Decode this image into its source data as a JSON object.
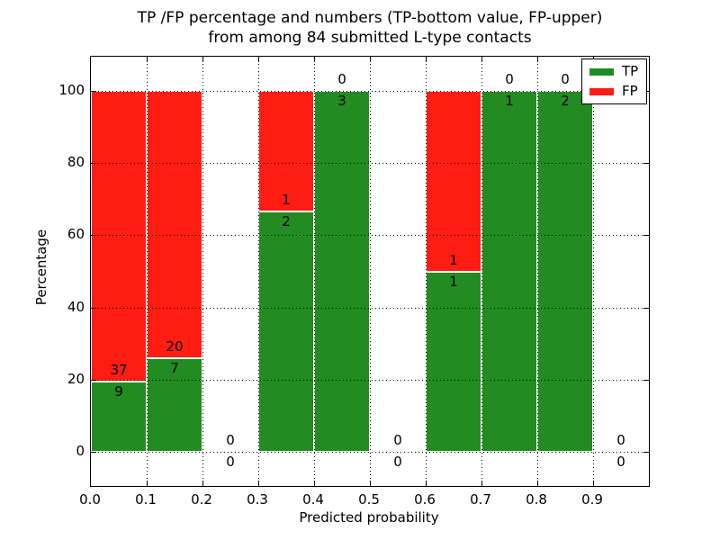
{
  "title": {
    "line1": "TP /FP percentage and numbers (TP-bottom value, FP-upper)",
    "line2": "from among 84 submitted L-type contacts"
  },
  "axes": {
    "xlabel": "Predicted probability",
    "ylabel": "Percentage",
    "xtick_labels": [
      "0.0",
      "0.1",
      "0.2",
      "0.3",
      "0.4",
      "0.5",
      "0.6",
      "0.7",
      "0.8",
      "0.9"
    ],
    "ytick_labels": [
      "0",
      "20",
      "40",
      "60",
      "80",
      "100"
    ]
  },
  "legend": {
    "items": [
      {
        "label": "TP",
        "color": "#228b22"
      },
      {
        "label": "FP",
        "color": "#fd1d13"
      }
    ]
  },
  "colors": {
    "tp_green": "#228b22",
    "fp_red": "#fd1d13",
    "grid": "#000000",
    "background": "#ffffff"
  },
  "chart_data": {
    "type": "bar",
    "stacked": true,
    "normalization": "each bin scaled to 100% (counts annotated: TP below boundary, FP above)",
    "title": "TP /FP percentage and numbers (TP-bottom value, FP-upper) from among 84 submitted L-type contacts",
    "xlabel": "Predicted probability",
    "ylabel": "Percentage",
    "bins": [
      [
        0.0,
        0.1
      ],
      [
        0.1,
        0.2
      ],
      [
        0.2,
        0.3
      ],
      [
        0.3,
        0.4
      ],
      [
        0.4,
        0.5
      ],
      [
        0.5,
        0.6
      ],
      [
        0.6,
        0.7
      ],
      [
        0.7,
        0.8
      ],
      [
        0.8,
        0.9
      ],
      [
        0.9,
        1.0
      ]
    ],
    "series": [
      {
        "name": "TP",
        "color": "#228b22",
        "values": [
          9,
          7,
          0,
          2,
          3,
          0,
          1,
          1,
          2,
          0
        ]
      },
      {
        "name": "FP",
        "color": "#fd1d13",
        "values": [
          37,
          20,
          0,
          1,
          0,
          0,
          1,
          0,
          0,
          0
        ]
      }
    ],
    "tp_percent_per_bin": [
      19.57,
      25.93,
      0,
      66.67,
      100,
      0,
      50,
      100,
      100,
      0
    ],
    "total_contacts": 84,
    "xlim": [
      0.0,
      1.0
    ],
    "ylim": [
      -10,
      110
    ],
    "grid": "dotted",
    "legend_position": "upper right"
  }
}
